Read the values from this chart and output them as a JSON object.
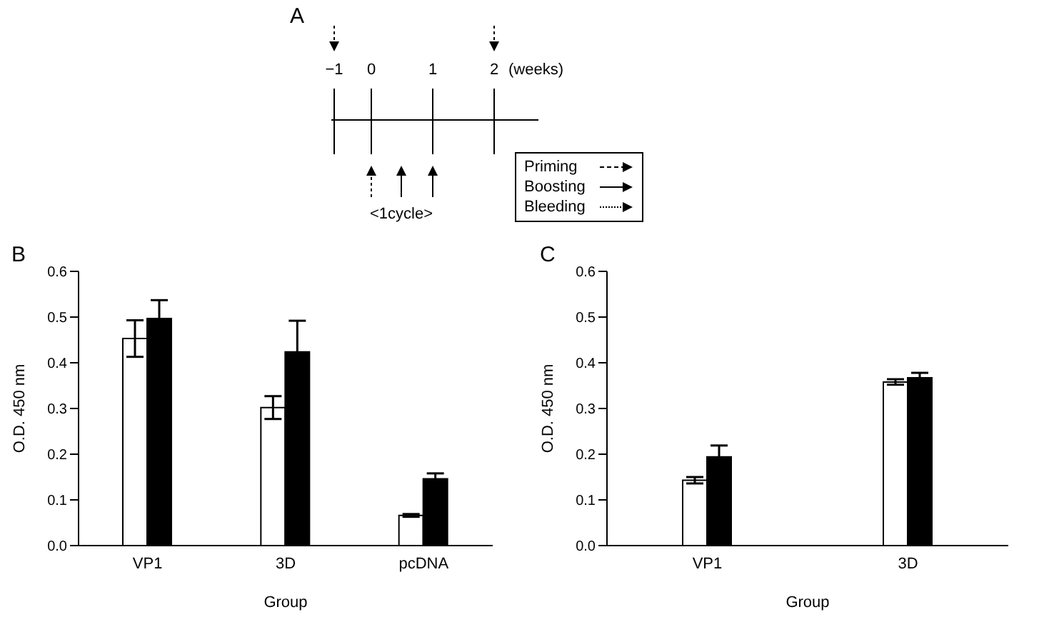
{
  "chart_data": [
    {
      "type": "other",
      "title": "A",
      "annotations": [
        "−1",
        "0",
        "1",
        "2",
        "(weeks)",
        "<1cycle>",
        "Priming",
        "Boosting",
        "Bleeding"
      ]
    },
    {
      "type": "bar",
      "title": "B",
      "xlabel": "Group",
      "ylabel": "O.D. 450 nm",
      "categories": [
        "VP1",
        "3D",
        "pcDNA"
      ],
      "ylim": [
        0,
        0.6
      ],
      "yticks": [
        "0.0",
        0.1,
        0.2,
        0.3,
        0.4,
        0.5,
        0.6
      ],
      "grid": false,
      "legend": false,
      "series": [
        {
          "color": "#ffffff",
          "values": [
            0.453,
            0.302,
            0.066
          ],
          "errors": [
            0.04,
            0.025,
            0.003
          ]
        },
        {
          "color": "#000000",
          "values": [
            0.497,
            0.424,
            0.146
          ],
          "errors": [
            0.04,
            0.068,
            0.012
          ]
        }
      ]
    },
    {
      "type": "bar",
      "title": "C",
      "xlabel": "Group",
      "ylabel": "O.D. 450 nm",
      "categories": [
        "VP1",
        "3D"
      ],
      "ylim": [
        0,
        0.6
      ],
      "yticks": [
        "0.0",
        0.1,
        0.2,
        0.3,
        0.4,
        0.5,
        0.6
      ],
      "grid": false,
      "legend": false,
      "series": [
        {
          "color": "#ffffff",
          "values": [
            0.143,
            0.358
          ],
          "errors": [
            0.007,
            0.006
          ]
        },
        {
          "color": "#000000",
          "values": [
            0.194,
            0.367
          ],
          "errors": [
            0.025,
            0.011
          ]
        }
      ]
    }
  ]
}
